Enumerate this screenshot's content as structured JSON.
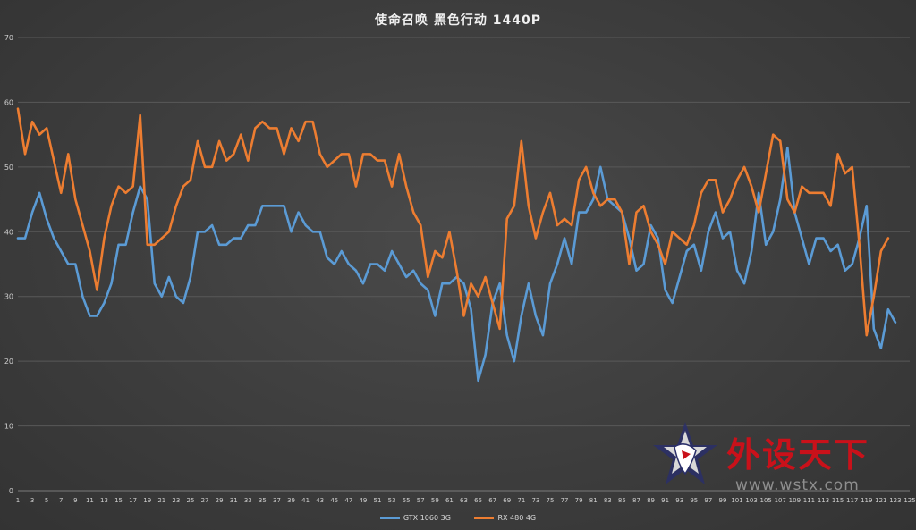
{
  "chart_data": {
    "type": "line",
    "title": "使命召唤 黑色行动 1440P",
    "xlabel": "",
    "ylabel": "",
    "ylim": [
      0,
      70
    ],
    "yticks": [
      0,
      10,
      20,
      30,
      40,
      50,
      60,
      70
    ],
    "xlim": [
      1,
      125
    ],
    "xticks": [
      1,
      3,
      5,
      7,
      9,
      11,
      13,
      15,
      17,
      19,
      21,
      23,
      25,
      27,
      29,
      31,
      33,
      35,
      37,
      39,
      41,
      43,
      45,
      47,
      49,
      51,
      53,
      55,
      57,
      59,
      61,
      63,
      65,
      67,
      69,
      71,
      73,
      75,
      77,
      79,
      81,
      83,
      85,
      87,
      89,
      91,
      93,
      95,
      97,
      99,
      101,
      103,
      105,
      107,
      109,
      111,
      113,
      115,
      117,
      119,
      121,
      123,
      125
    ],
    "legend_position": "bottom",
    "grid": true,
    "series": [
      {
        "name": "GTX 1060 3G",
        "color": "#5b9bd5",
        "values": [
          39,
          39,
          43,
          46,
          42,
          39,
          37,
          35,
          35,
          30,
          27,
          27,
          29,
          32,
          38,
          38,
          43,
          47,
          45,
          32,
          30,
          33,
          30,
          29,
          33,
          40,
          40,
          41,
          38,
          38,
          39,
          39,
          41,
          41,
          44,
          44,
          44,
          44,
          40,
          43,
          41,
          40,
          40,
          36,
          35,
          37,
          35,
          34,
          32,
          35,
          35,
          34,
          37,
          35,
          33,
          34,
          32,
          31,
          27,
          32,
          32,
          33,
          32,
          28,
          17,
          21,
          29,
          32,
          24,
          20,
          27,
          32,
          27,
          24,
          32,
          35,
          39,
          35,
          43,
          43,
          45,
          50,
          45,
          44,
          43,
          39,
          34,
          35,
          41,
          39,
          31,
          29,
          33,
          37,
          38,
          34,
          40,
          43,
          39,
          40,
          34,
          32,
          37,
          46,
          38,
          40,
          45,
          53,
          43,
          39,
          35,
          39,
          39,
          37,
          38,
          34,
          35,
          39,
          44,
          25,
          22,
          28,
          26
        ]
      },
      {
        "name": "RX 480 4G",
        "color": "#ed7d31",
        "values": [
          59,
          52,
          57,
          55,
          56,
          51,
          46,
          52,
          45,
          41,
          37,
          31,
          39,
          44,
          47,
          46,
          47,
          58,
          38,
          38,
          39,
          40,
          44,
          47,
          48,
          54,
          50,
          50,
          54,
          51,
          52,
          55,
          51,
          56,
          57,
          56,
          56,
          52,
          56,
          54,
          57,
          57,
          52,
          50,
          51,
          52,
          52,
          47,
          52,
          52,
          51,
          51,
          47,
          52,
          47,
          43,
          41,
          33,
          37,
          36,
          40,
          34,
          27,
          32,
          30,
          33,
          29,
          25,
          42,
          44,
          54,
          44,
          39,
          43,
          46,
          41,
          42,
          41,
          48,
          50,
          46,
          44,
          45,
          45,
          43,
          35,
          43,
          44,
          40,
          38,
          35,
          40,
          39,
          38,
          41,
          46,
          48,
          48,
          43,
          45,
          48,
          50,
          47,
          43,
          49,
          55,
          54,
          45,
          43,
          47,
          46,
          46,
          46,
          44,
          52,
          49,
          50,
          38,
          24,
          30,
          37,
          39
        ]
      }
    ]
  },
  "watermark": {
    "brand": "外设天下",
    "url": "www.wstx.com"
  }
}
